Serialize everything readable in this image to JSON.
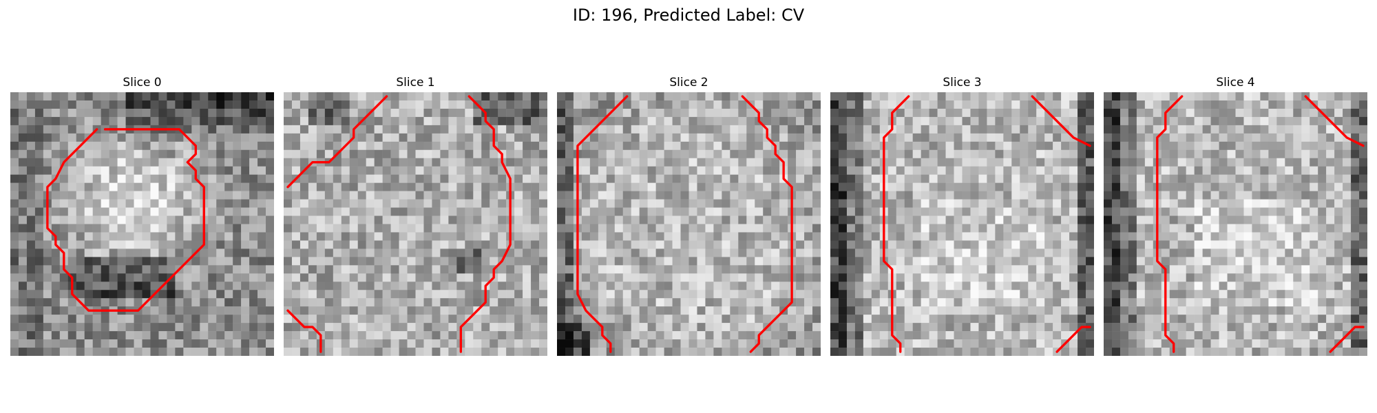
{
  "figure": {
    "title": "ID: 196, Predicted Label: CV",
    "contour_color": "#ff0000",
    "colormap": "gray",
    "panels": [
      {
        "title": "Slice 0"
      },
      {
        "title": "Slice 1"
      },
      {
        "title": "Slice 2"
      },
      {
        "title": "Slice 3"
      },
      {
        "title": "Slice 4"
      }
    ]
  }
}
